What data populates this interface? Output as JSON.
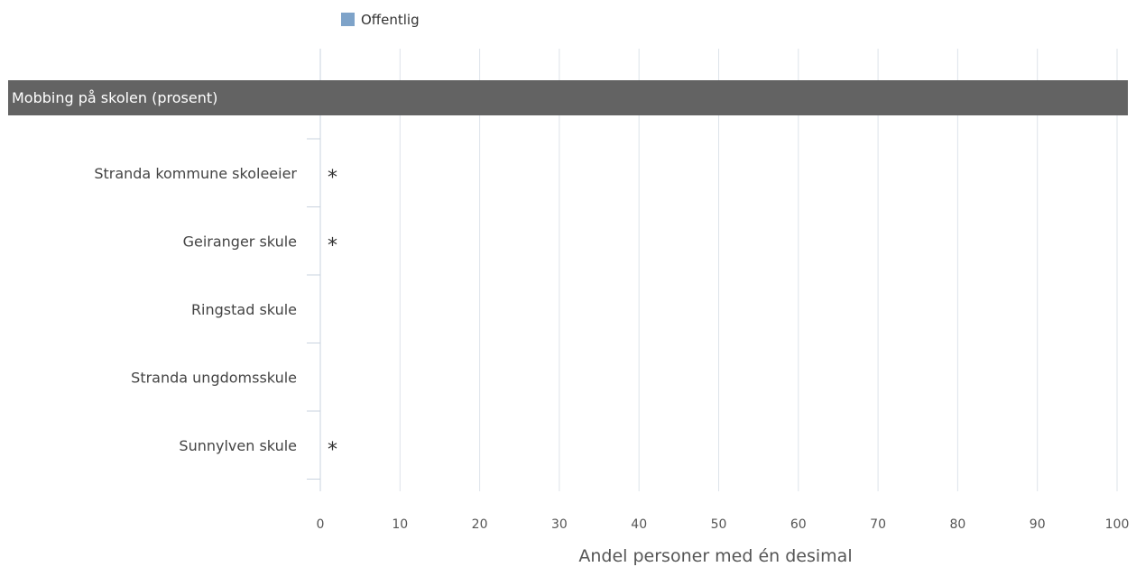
{
  "chart_data": {
    "type": "bar",
    "orientation": "horizontal",
    "section_title": "Mobbing på skolen (prosent)",
    "categories": [
      "Stranda kommune skoleeier",
      "Geiranger skule",
      "Ringstad skule",
      "Stranda ungdomsskule",
      "Sunnylven skule"
    ],
    "series": [
      {
        "name": "Offentlig",
        "color": "#7ea3c9",
        "values": [
          null,
          null,
          null,
          null,
          null
        ],
        "labels": [
          "*",
          "*",
          "",
          "",
          "*"
        ]
      }
    ],
    "xlabel": "Andel personer med én desimal",
    "xlim": [
      0,
      100
    ],
    "xticks": [
      0,
      10,
      20,
      30,
      40,
      50,
      60,
      70,
      80,
      90,
      100
    ],
    "grid": true,
    "legend_position": "top"
  }
}
